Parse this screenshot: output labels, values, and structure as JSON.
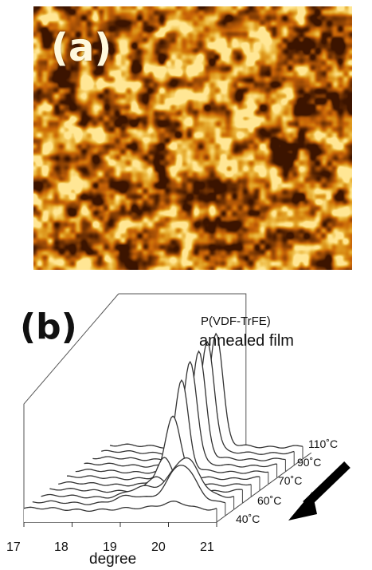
{
  "panel_a": {
    "label": "(a)"
  },
  "chart_data": {
    "type": "line",
    "panel_label": "(b)",
    "title": "P(VDF-TrFE)",
    "subtitle": "annealed film",
    "xlabel": "degree",
    "xlim": [
      17,
      21
    ],
    "x_ticks": [
      "17",
      "18",
      "19",
      "20",
      "21"
    ],
    "temperature_labels": [
      "40˚C",
      "60˚C",
      "70˚C",
      "90˚C",
      "110˚C"
    ],
    "series": [
      {
        "peaks": [
          {
            "x": 20.15,
            "height": 0.07,
            "width": 0.28
          }
        ]
      },
      {
        "peaks": [
          {
            "x": 20.1,
            "height": 0.35,
            "width": 0.28
          },
          {
            "x": 19.0,
            "height": 0.06,
            "width": 0.3
          }
        ]
      },
      {
        "peaks": [
          {
            "x": 20.0,
            "height": 0.35,
            "width": 0.28
          },
          {
            "x": 19.1,
            "height": 0.08,
            "width": 0.3
          }
        ]
      },
      {
        "peaks": [
          {
            "x": 19.2,
            "height": 0.12,
            "width": 0.15
          }
        ]
      },
      {
        "peaks": [
          {
            "x": 19.2,
            "height": 0.22,
            "width": 0.15
          }
        ]
      },
      {
        "peaks": [
          {
            "x": 19.2,
            "height": 0.55,
            "width": 0.15
          }
        ]
      },
      {
        "peaks": [
          {
            "x": 19.2,
            "height": 0.8,
            "width": 0.14
          }
        ]
      },
      {
        "peaks": [
          {
            "x": 19.2,
            "height": 0.92,
            "width": 0.14
          }
        ]
      },
      {
        "peaks": [
          {
            "x": 19.2,
            "height": 0.95,
            "width": 0.14
          }
        ]
      },
      {
        "peaks": [
          {
            "x": 19.2,
            "height": 0.98,
            "width": 0.14
          }
        ]
      },
      {
        "peaks": [
          {
            "x": 19.2,
            "height": 1.0,
            "width": 0.14
          }
        ]
      }
    ],
    "arrow_color": "#000000",
    "line_color": "#333333"
  }
}
